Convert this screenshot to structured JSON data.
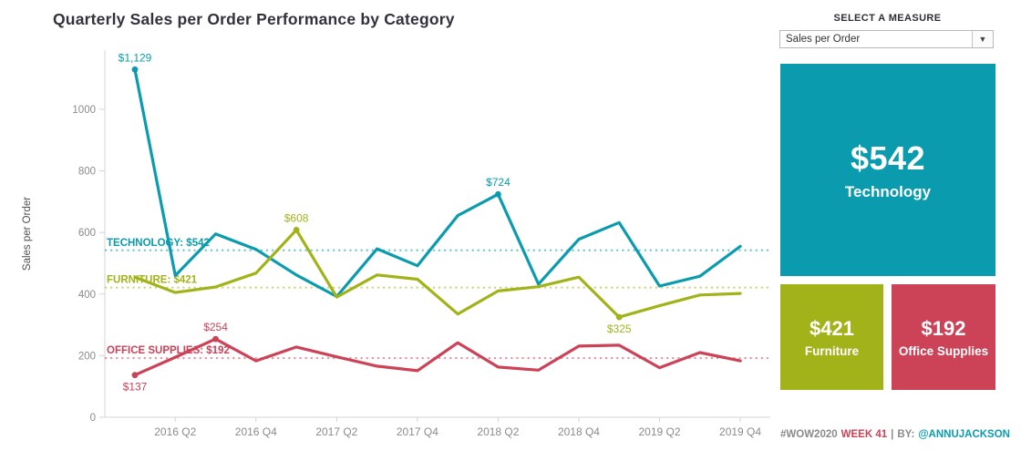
{
  "title": "Quarterly Sales per Order Performance by Category",
  "chart_data": {
    "type": "line",
    "x": [
      "2016 Q1",
      "2016 Q2",
      "2016 Q3",
      "2016 Q4",
      "2017 Q1",
      "2017 Q2",
      "2017 Q3",
      "2017 Q4",
      "2018 Q1",
      "2018 Q2",
      "2018 Q3",
      "2018 Q4",
      "2019 Q1",
      "2019 Q2",
      "2019 Q3",
      "2019 Q4"
    ],
    "x_tick_labels": [
      "2016 Q2",
      "2016 Q4",
      "2017 Q2",
      "2017 Q4",
      "2018 Q2",
      "2018 Q4",
      "2019 Q2",
      "2019 Q4"
    ],
    "ylabel": "Sales per Order",
    "y_ticks": [
      0,
      200,
      400,
      600,
      800,
      1000
    ],
    "ylim": [
      0,
      1192
    ],
    "grid": false,
    "legend_position": "none",
    "series": [
      {
        "name": "Technology",
        "color": "#0a9cae",
        "values": [
          1129,
          460,
          595,
          545,
          462,
          392,
          547,
          492,
          655,
          724,
          432,
          578,
          632,
          426,
          458,
          555
        ]
      },
      {
        "name": "Furniture",
        "color": "#a2b31a",
        "values": [
          455,
          405,
          423,
          468,
          608,
          390,
          462,
          448,
          335,
          410,
          424,
          455,
          325,
          362,
          397,
          402
        ]
      },
      {
        "name": "Office Supplies",
        "color": "#cc4257",
        "values": [
          137,
          195,
          254,
          183,
          228,
          196,
          166,
          151,
          242,
          163,
          153,
          231,
          234,
          161,
          210,
          183
        ]
      }
    ],
    "reference_lines": [
      {
        "series": "Technology",
        "label": "TECHNOLOGY: $542",
        "value": 542
      },
      {
        "series": "Furniture",
        "label": "FURNITURE: $421",
        "value": 421
      },
      {
        "series": "Office Supplies",
        "label": "OFFICE SUPPLIES: $192",
        "value": 192
      }
    ],
    "point_labels": [
      {
        "series": "Technology",
        "x": "2016 Q1",
        "text": "$1,129",
        "position": "above"
      },
      {
        "series": "Technology",
        "x": "2018 Q2",
        "text": "$724",
        "position": "above"
      },
      {
        "series": "Furniture",
        "x": "2017 Q1",
        "text": "$608",
        "position": "above"
      },
      {
        "series": "Furniture",
        "x": "2019 Q1",
        "text": "$325",
        "position": "below"
      },
      {
        "series": "Office Supplies",
        "x": "2016 Q3",
        "text": "$254",
        "position": "above"
      },
      {
        "series": "Office Supplies",
        "x": "2016 Q1",
        "text": "$137",
        "position": "below"
      }
    ]
  },
  "measure_panel": {
    "select_label": "SELECT A MEASURE",
    "dropdown_value": "Sales per Order",
    "cards": [
      {
        "value": "$542",
        "label": "Technology",
        "color": "#0a9cae"
      },
      {
        "value": "$421",
        "label": "Furniture",
        "color": "#a2b31a"
      },
      {
        "value": "$192",
        "label": "Office Supplies",
        "color": "#cc4257"
      }
    ]
  },
  "footer": {
    "hashtag": "#WOW2020",
    "week": "WEEK 41",
    "separator": "|",
    "by": "BY:",
    "author": "@ANNUJACKSON",
    "week_color": "#cc4257",
    "author_color": "#0a9cae"
  }
}
